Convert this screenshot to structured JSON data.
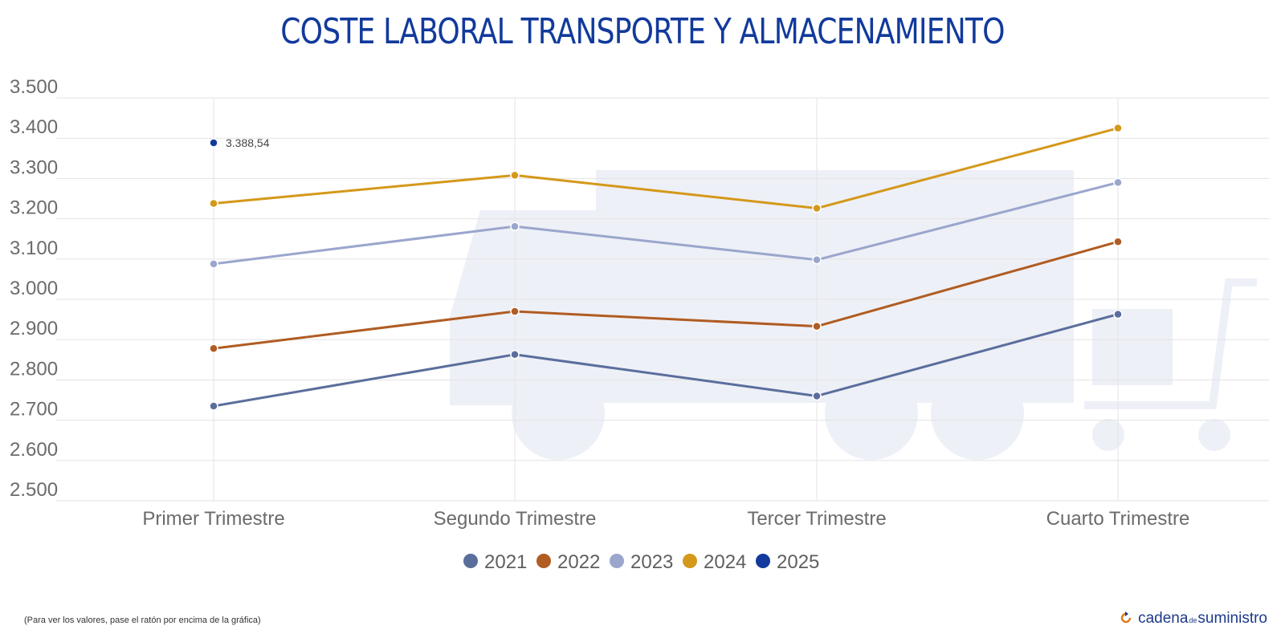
{
  "title": "COSTE LABORAL TRANSPORTE Y ALMACENAMIENTO",
  "footnote": "(Para ver los valores, pase el ratón por encima de la gráfica)",
  "brand": {
    "part1": "cadena",
    "part2": "de",
    "part3": "suministro",
    "icon": "refresh-arrow-icon"
  },
  "chart_data": {
    "type": "line",
    "title": "COSTE LABORAL TRANSPORTE Y ALMACENAMIENTO",
    "categories": [
      "Primer Trimestre",
      "Segundo Trimestre",
      "Tercer Trimestre",
      "Cuarto Trimestre"
    ],
    "ylim": [
      2500,
      3500
    ],
    "yticks": [
      2500,
      2600,
      2700,
      2800,
      2900,
      3000,
      3100,
      3200,
      3300,
      3400,
      3500
    ],
    "ytick_labels": [
      "2.500",
      "2.600",
      "2.700",
      "2.800",
      "2.900",
      "3.000",
      "3.100",
      "3.200",
      "3.300",
      "3.400",
      "3.500"
    ],
    "grid": true,
    "legend_position": "bottom-center",
    "series": [
      {
        "name": "2021",
        "color": "#5a6e9c",
        "values": [
          2735,
          2863,
          2760,
          2963
        ]
      },
      {
        "name": "2022",
        "color": "#b05c22",
        "values": [
          2878,
          2970,
          2933,
          3143
        ]
      },
      {
        "name": "2023",
        "color": "#9aa6cc",
        "values": [
          3088,
          3181,
          3098,
          3290
        ]
      },
      {
        "name": "2024",
        "color": "#d4981a",
        "values": [
          3238,
          3308,
          3226,
          3425
        ]
      },
      {
        "name": "2025",
        "color": "#123a9c",
        "values": [
          3388.54,
          null,
          null,
          null
        ]
      }
    ],
    "annotations": [
      {
        "series": "2025",
        "category": "Primer Trimestre",
        "text": "3.388,54"
      }
    ]
  }
}
